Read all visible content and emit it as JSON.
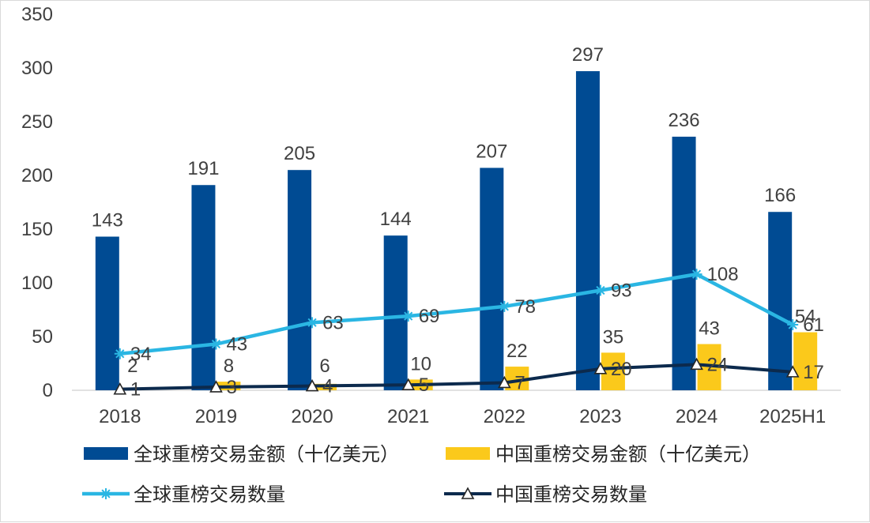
{
  "chart_data": {
    "type": "bar",
    "title": "",
    "xlabel": "",
    "ylabel": "",
    "ylim": [
      0,
      350
    ],
    "yticks": [
      0,
      50,
      100,
      150,
      200,
      250,
      300,
      350
    ],
    "grid": false,
    "legend_position": "bottom",
    "categories": [
      "2018",
      "2019",
      "2020",
      "2021",
      "2022",
      "2023",
      "2024",
      "2025H1"
    ],
    "series": [
      {
        "name": "全球重榜交易金额（十亿美元）",
        "kind": "bar",
        "color": "#004b93",
        "values": [
          143,
          191,
          205,
          144,
          207,
          297,
          236,
          166
        ]
      },
      {
        "name": "中国重榜交易金额（十亿美元）",
        "kind": "bar",
        "color": "#fbc91b",
        "values": [
          2,
          8,
          6,
          10,
          22,
          35,
          43,
          54
        ]
      },
      {
        "name": "全球重榜交易数量",
        "kind": "line",
        "marker": "star",
        "color": "#2ab6e3",
        "values": [
          34,
          43,
          63,
          69,
          78,
          93,
          108,
          61
        ]
      },
      {
        "name": "中国重榜交易数量",
        "kind": "line",
        "marker": "triangle",
        "color": "#0c2a4d",
        "values": [
          1,
          3,
          4,
          5,
          7,
          20,
          24,
          17
        ]
      }
    ]
  }
}
